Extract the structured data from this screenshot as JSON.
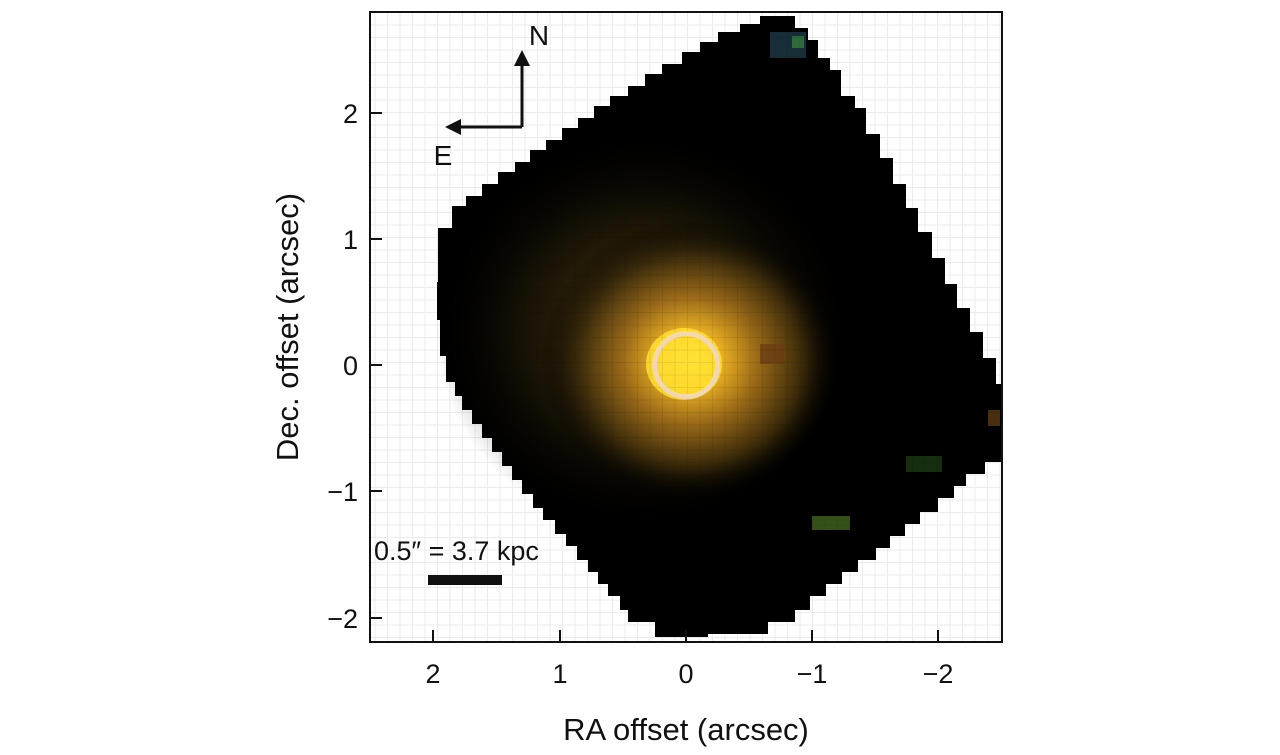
{
  "figure": {
    "xlabel": "RA offset (arcsec)",
    "ylabel": "Dec. offset (arcsec)",
    "x_ticks": [
      "2",
      "1",
      "0",
      "−1",
      "−2"
    ],
    "y_ticks": [
      "2",
      "1",
      "0",
      "−1",
      "−2"
    ],
    "x_range_arcsec": [
      2.5,
      -2.5
    ],
    "y_range_arcsec": [
      -2.2,
      2.8
    ],
    "compass": {
      "north": "N",
      "east": "E"
    },
    "scale_bar": {
      "label": "0.5″ = 3.7 kpc",
      "length_arcsec": 0.5
    },
    "aperture": {
      "center_arcsec": [
        0,
        0
      ],
      "radius_arcsec": 0.25
    },
    "colors": {
      "background": "#000000",
      "core": "#ffe030",
      "halo": "#b07a1e",
      "aperture": "#f3d7b0"
    }
  }
}
